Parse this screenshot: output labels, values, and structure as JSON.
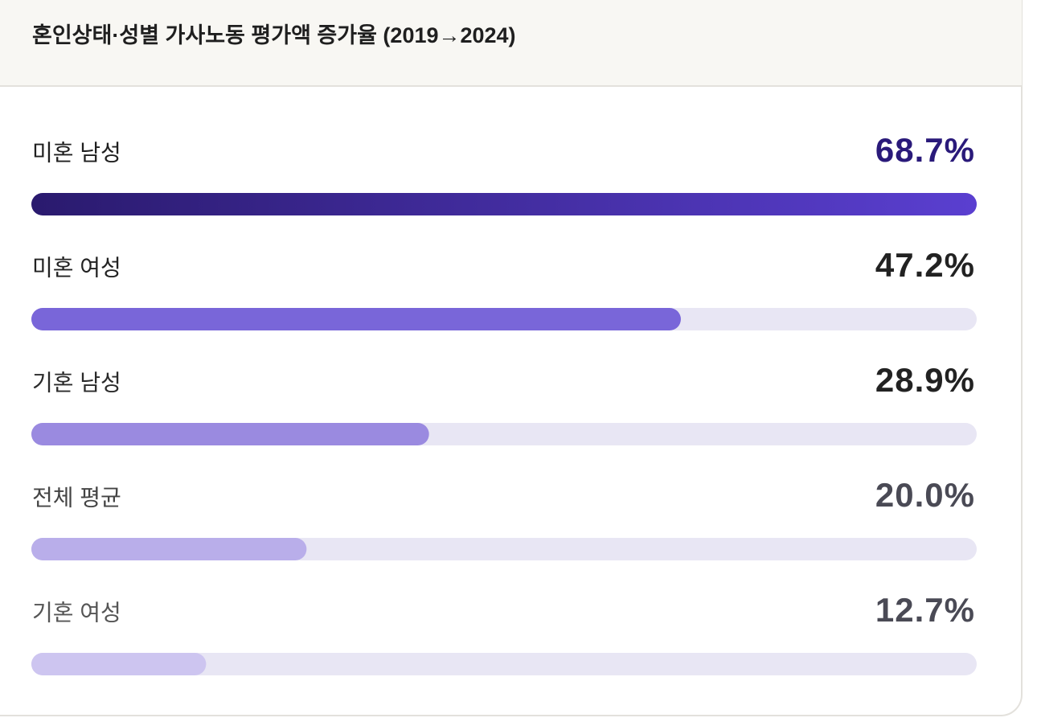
{
  "chart_data": {
    "type": "bar",
    "orientation": "horizontal",
    "title": "혼인상태·성별 가사노동 평가액 증가율 (2019→2024)",
    "categories": [
      "미혼 남성",
      "미혼 여성",
      "기혼 남성",
      "전체 평균",
      "기혼 여성"
    ],
    "values": [
      68.7,
      47.2,
      28.9,
      20.0,
      12.7
    ],
    "value_labels": [
      "68.7%",
      "47.2%",
      "28.9%",
      "20.0%",
      "12.7%"
    ],
    "colors": [
      [
        "#2a1a6e",
        "#5a3fd0"
      ],
      "#7966d9",
      "#9a8ae0",
      "#b9aeea",
      "#cdc5f0"
    ],
    "track_color": "#e8e6f4",
    "xlim": [
      0,
      68.7
    ]
  }
}
